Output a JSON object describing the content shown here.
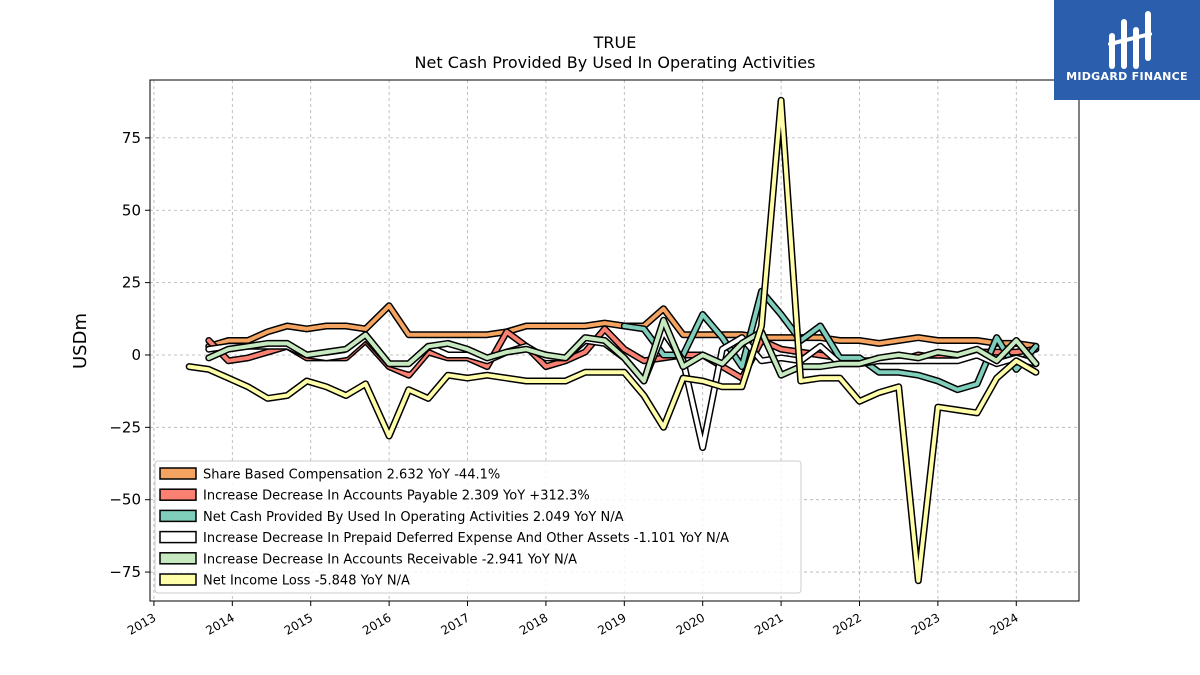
{
  "chart_data": {
    "type": "line",
    "title": "TRUE",
    "subtitle": "Net Cash Provided By Used In Operating Activities",
    "ylabel": "USDm",
    "xlim": [
      2012.95,
      2024.8
    ],
    "ylim": [
      -85,
      95
    ],
    "yticks": [
      75,
      50,
      25,
      0,
      -25,
      -50,
      -75
    ],
    "ytick_labels": [
      "75",
      "50",
      "25",
      "0",
      "−25",
      "−50",
      "−75"
    ],
    "xticks": [
      2013,
      2014,
      2015,
      2016,
      2017,
      2018,
      2019,
      2020,
      2021,
      2022,
      2023,
      2024
    ],
    "xtick_labels": [
      "2013",
      "2014",
      "2015",
      "2016",
      "2017",
      "2018",
      "2019",
      "2020",
      "2021",
      "2022",
      "2023",
      "2024"
    ],
    "grid": true,
    "legend_position": "lower-left",
    "series": [
      {
        "name": "Share Based Compensation  2.632 YoY -44.1%",
        "color": "#f4a460",
        "points": [
          [
            2013.7,
            3
          ],
          [
            2013.95,
            5
          ],
          [
            2014.2,
            5
          ],
          [
            2014.45,
            8
          ],
          [
            2014.7,
            10
          ],
          [
            2014.95,
            9
          ],
          [
            2015.2,
            10
          ],
          [
            2015.45,
            10
          ],
          [
            2015.7,
            9
          ],
          [
            2016.0,
            17
          ],
          [
            2016.25,
            7
          ],
          [
            2016.5,
            7
          ],
          [
            2016.75,
            7
          ],
          [
            2017.0,
            7
          ],
          [
            2017.25,
            7
          ],
          [
            2017.5,
            8
          ],
          [
            2017.75,
            10
          ],
          [
            2018.0,
            10
          ],
          [
            2018.25,
            10
          ],
          [
            2018.5,
            10
          ],
          [
            2018.75,
            11
          ],
          [
            2019.0,
            10
          ],
          [
            2019.25,
            10
          ],
          [
            2019.5,
            16
          ],
          [
            2019.75,
            7
          ],
          [
            2020.0,
            7
          ],
          [
            2020.25,
            7
          ],
          [
            2020.5,
            7
          ],
          [
            2020.75,
            6
          ],
          [
            2021.0,
            6
          ],
          [
            2021.25,
            6
          ],
          [
            2021.5,
            6
          ],
          [
            2021.75,
            5
          ],
          [
            2022.0,
            5
          ],
          [
            2022.25,
            4
          ],
          [
            2022.5,
            5
          ],
          [
            2022.75,
            6
          ],
          [
            2023.0,
            5
          ],
          [
            2023.25,
            5
          ],
          [
            2023.5,
            5
          ],
          [
            2023.75,
            4
          ],
          [
            2024.0,
            4
          ],
          [
            2024.25,
            3
          ]
        ]
      },
      {
        "name": "Increase Decrease In Accounts Payable  2.309 YoY +312.3%",
        "color": "#fa8072",
        "points": [
          [
            2013.7,
            5
          ],
          [
            2013.95,
            -2
          ],
          [
            2014.2,
            -1
          ],
          [
            2014.45,
            1
          ],
          [
            2014.7,
            3
          ],
          [
            2014.95,
            -1
          ],
          [
            2015.2,
            -1
          ],
          [
            2015.45,
            -1
          ],
          [
            2015.7,
            5
          ],
          [
            2016.0,
            -4
          ],
          [
            2016.25,
            -7
          ],
          [
            2016.5,
            1
          ],
          [
            2016.75,
            -1
          ],
          [
            2017.0,
            -1
          ],
          [
            2017.25,
            -4
          ],
          [
            2017.5,
            8
          ],
          [
            2017.75,
            3
          ],
          [
            2018.0,
            -4
          ],
          [
            2018.25,
            -2
          ],
          [
            2018.5,
            1
          ],
          [
            2018.75,
            9
          ],
          [
            2019.0,
            2
          ],
          [
            2019.25,
            -2
          ],
          [
            2019.5,
            -1
          ],
          [
            2019.75,
            0
          ],
          [
            2020.0,
            0
          ],
          [
            2020.25,
            -4
          ],
          [
            2020.5,
            -8
          ],
          [
            2020.75,
            5
          ],
          [
            2021.0,
            2
          ],
          [
            2021.25,
            1
          ],
          [
            2021.5,
            0
          ],
          [
            2021.75,
            -1
          ],
          [
            2022.0,
            -2
          ],
          [
            2022.25,
            -2
          ],
          [
            2022.5,
            -2
          ],
          [
            2022.75,
            0
          ],
          [
            2023.0,
            -1
          ],
          [
            2023.25,
            -1
          ],
          [
            2023.5,
            1
          ],
          [
            2023.75,
            1
          ],
          [
            2024.0,
            1
          ],
          [
            2024.25,
            2
          ]
        ]
      },
      {
        "name": "Net Cash Provided By Used In Operating Activities  2.049 YoY N/A",
        "color": "#7fcdbb",
        "points": [
          [
            2019.0,
            10
          ],
          [
            2019.25,
            9
          ],
          [
            2019.5,
            0
          ],
          [
            2019.75,
            0
          ],
          [
            2020.0,
            14
          ],
          [
            2020.25,
            6
          ],
          [
            2020.5,
            -4
          ],
          [
            2020.75,
            22
          ],
          [
            2021.0,
            14
          ],
          [
            2021.25,
            5
          ],
          [
            2021.5,
            10
          ],
          [
            2021.75,
            -1
          ],
          [
            2022.0,
            -1
          ],
          [
            2022.25,
            -6
          ],
          [
            2022.5,
            -6
          ],
          [
            2022.75,
            -7
          ],
          [
            2023.0,
            -9
          ],
          [
            2023.25,
            -12
          ],
          [
            2023.5,
            -10
          ],
          [
            2023.75,
            6
          ],
          [
            2024.0,
            -5
          ],
          [
            2024.25,
            3
          ]
        ]
      },
      {
        "name": "Increase Decrease In Prepaid Deferred Expense And Other Assets  -1.101 YoY N/A",
        "color": "#ffffff",
        "points": [
          [
            2013.7,
            2
          ],
          [
            2013.95,
            3
          ],
          [
            2014.2,
            3
          ],
          [
            2014.45,
            3
          ],
          [
            2014.7,
            3
          ],
          [
            2014.95,
            0
          ],
          [
            2015.2,
            -1
          ],
          [
            2015.45,
            0
          ],
          [
            2015.7,
            6
          ],
          [
            2016.0,
            -3
          ],
          [
            2016.25,
            -5
          ],
          [
            2016.5,
            3
          ],
          [
            2016.75,
            0
          ],
          [
            2017.0,
            0
          ],
          [
            2017.25,
            -2
          ],
          [
            2017.5,
            1
          ],
          [
            2017.75,
            3
          ],
          [
            2018.0,
            -1
          ],
          [
            2018.25,
            -1
          ],
          [
            2018.5,
            5
          ],
          [
            2018.75,
            4
          ],
          [
            2019.0,
            -1
          ],
          [
            2019.25,
            -9
          ],
          [
            2019.5,
            8
          ],
          [
            2019.75,
            -2
          ],
          [
            2020.0,
            -32
          ],
          [
            2020.25,
            2
          ],
          [
            2020.5,
            6
          ],
          [
            2020.75,
            -2
          ],
          [
            2021.0,
            -1
          ],
          [
            2021.25,
            -2
          ],
          [
            2021.5,
            3
          ],
          [
            2021.75,
            -3
          ],
          [
            2022.0,
            -3
          ],
          [
            2022.25,
            -2
          ],
          [
            2022.5,
            -2
          ],
          [
            2022.75,
            -2
          ],
          [
            2023.0,
            -2
          ],
          [
            2023.25,
            -2
          ],
          [
            2023.5,
            0
          ],
          [
            2023.75,
            -3
          ],
          [
            2024.0,
            -1
          ],
          [
            2024.25,
            -3
          ]
        ]
      },
      {
        "name": "Increase Decrease In Accounts Receivable  -2.941 YoY N/A",
        "color": "#c7e9c0",
        "points": [
          [
            2013.7,
            -1
          ],
          [
            2013.95,
            2
          ],
          [
            2014.2,
            3
          ],
          [
            2014.45,
            4
          ],
          [
            2014.7,
            4
          ],
          [
            2014.95,
            0
          ],
          [
            2015.2,
            1
          ],
          [
            2015.45,
            2
          ],
          [
            2015.7,
            7
          ],
          [
            2016.0,
            -3
          ],
          [
            2016.25,
            -3
          ],
          [
            2016.5,
            3
          ],
          [
            2016.75,
            4
          ],
          [
            2017.0,
            2
          ],
          [
            2017.25,
            -1
          ],
          [
            2017.5,
            1
          ],
          [
            2017.75,
            2
          ],
          [
            2018.0,
            0
          ],
          [
            2018.25,
            -1
          ],
          [
            2018.5,
            6
          ],
          [
            2018.75,
            5
          ],
          [
            2019.0,
            -1
          ],
          [
            2019.25,
            -9
          ],
          [
            2019.5,
            12
          ],
          [
            2019.75,
            -4
          ],
          [
            2020.0,
            0
          ],
          [
            2020.25,
            -3
          ],
          [
            2020.5,
            4
          ],
          [
            2020.75,
            8
          ],
          [
            2021.0,
            -7
          ],
          [
            2021.25,
            -4
          ],
          [
            2021.5,
            -4
          ],
          [
            2021.75,
            -3
          ],
          [
            2022.0,
            -3
          ],
          [
            2022.25,
            -1
          ],
          [
            2022.5,
            0
          ],
          [
            2022.75,
            -1
          ],
          [
            2023.0,
            1
          ],
          [
            2023.25,
            0
          ],
          [
            2023.5,
            2
          ],
          [
            2023.75,
            -2
          ],
          [
            2024.0,
            5
          ],
          [
            2024.25,
            -3
          ]
        ]
      },
      {
        "name": "Net Income Loss  -5.848 YoY N/A",
        "color": "#ffffaa",
        "points": [
          [
            2013.45,
            -4
          ],
          [
            2013.7,
            -5
          ],
          [
            2013.95,
            -8
          ],
          [
            2014.2,
            -11
          ],
          [
            2014.45,
            -15
          ],
          [
            2014.7,
            -14
          ],
          [
            2014.95,
            -9
          ],
          [
            2015.2,
            -11
          ],
          [
            2015.45,
            -14
          ],
          [
            2015.7,
            -10
          ],
          [
            2016.0,
            -28
          ],
          [
            2016.25,
            -12
          ],
          [
            2016.5,
            -15
          ],
          [
            2016.75,
            -7
          ],
          [
            2017.0,
            -8
          ],
          [
            2017.25,
            -7
          ],
          [
            2017.5,
            -8
          ],
          [
            2017.75,
            -9
          ],
          [
            2018.0,
            -9
          ],
          [
            2018.25,
            -9
          ],
          [
            2018.5,
            -6
          ],
          [
            2018.75,
            -6
          ],
          [
            2019.0,
            -6
          ],
          [
            2019.25,
            -14
          ],
          [
            2019.5,
            -25
          ],
          [
            2019.75,
            -8
          ],
          [
            2020.0,
            -9
          ],
          [
            2020.25,
            -11
          ],
          [
            2020.5,
            -11
          ],
          [
            2020.75,
            10
          ],
          [
            2021.0,
            88
          ],
          [
            2021.25,
            -9
          ],
          [
            2021.5,
            -8
          ],
          [
            2021.75,
            -8
          ],
          [
            2022.0,
            -16
          ],
          [
            2022.25,
            -13
          ],
          [
            2022.5,
            -11
          ],
          [
            2022.75,
            -78
          ],
          [
            2023.0,
            -18
          ],
          [
            2023.25,
            -19
          ],
          [
            2023.5,
            -20
          ],
          [
            2023.75,
            -8
          ],
          [
            2024.0,
            -2
          ],
          [
            2024.25,
            -6
          ]
        ]
      }
    ]
  },
  "logo": {
    "text": "MIDGARD FINANCE",
    "bg_color": "#2b5fad"
  }
}
